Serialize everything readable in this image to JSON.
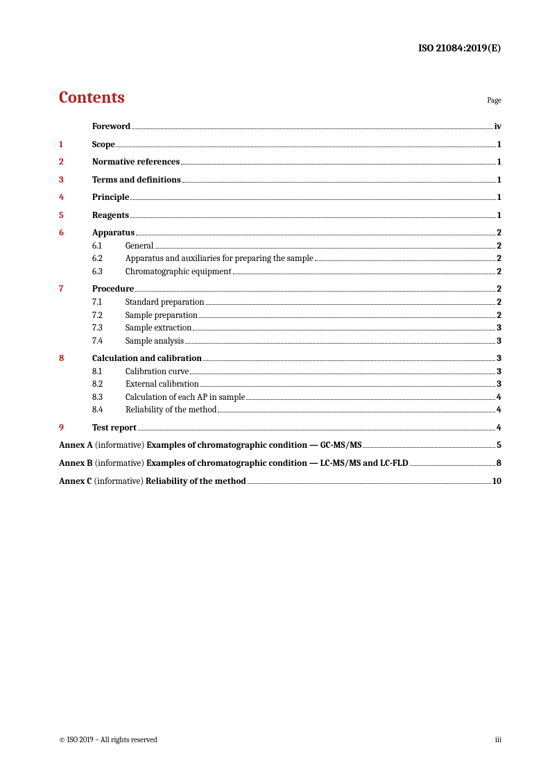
{
  "header": {
    "docId": "ISO 21084:2019(E)"
  },
  "contents": {
    "title": "Contents",
    "pageLabel": "Page"
  },
  "colors": {
    "accent": "#b22222",
    "text": "#000000",
    "background": "#ffffff"
  },
  "typography": {
    "bodyFontSize": 13,
    "titleFontSize": 24,
    "headerFontSize": 15,
    "footerFontSize": 11
  },
  "toc": [
    {
      "type": "top",
      "title": "Foreword",
      "page": "iv",
      "spaced": true
    },
    {
      "type": "top",
      "num": "1",
      "title": "Scope",
      "page": "1",
      "spaced": true
    },
    {
      "type": "top",
      "num": "2",
      "title": "Normative references",
      "page": "1",
      "spaced": true
    },
    {
      "type": "top",
      "num": "3",
      "title": "Terms and definitions",
      "page": "1",
      "spaced": true
    },
    {
      "type": "top",
      "num": "4",
      "title": "Principle",
      "page": "1",
      "spaced": true
    },
    {
      "type": "top",
      "num": "5",
      "title": "Reagents",
      "page": "1",
      "spaced": true
    },
    {
      "type": "top",
      "num": "6",
      "title": "Apparatus",
      "page": "2",
      "spaced": true
    },
    {
      "type": "sub",
      "num": "6.1",
      "title": "General",
      "page": "2"
    },
    {
      "type": "sub",
      "num": "6.2",
      "title": "Apparatus and auxiliaries for preparing the sample",
      "page": "2"
    },
    {
      "type": "sub",
      "num": "6.3",
      "title": "Chromatographic equipment",
      "page": "2"
    },
    {
      "type": "top",
      "num": "7",
      "title": "Procedure",
      "page": "2",
      "spaced": true
    },
    {
      "type": "sub",
      "num": "7.1",
      "title": "Standard preparation",
      "page": "2"
    },
    {
      "type": "sub",
      "num": "7.2",
      "title": "Sample preparation",
      "page": "2"
    },
    {
      "type": "sub",
      "num": "7.3",
      "title": "Sample extraction",
      "page": "3"
    },
    {
      "type": "sub",
      "num": "7.4",
      "title": "Sample analysis",
      "page": "3"
    },
    {
      "type": "top",
      "num": "8",
      "title": "Calculation and calibration",
      "page": "3",
      "spaced": true
    },
    {
      "type": "sub",
      "num": "8.1",
      "title": "Calibration curve",
      "page": "3"
    },
    {
      "type": "sub",
      "num": "8.2",
      "title": "External calibration",
      "page": "3"
    },
    {
      "type": "sub",
      "num": "8.3",
      "title": "Calculation of each AP in sample",
      "page": "4"
    },
    {
      "type": "sub",
      "num": "8.4",
      "title": "Reliability of the method",
      "page": "4"
    },
    {
      "type": "top",
      "num": "9",
      "title": "Test report",
      "page": "4",
      "spaced": true
    },
    {
      "type": "annex",
      "prefix": "Annex A",
      "info": "(informative)",
      "title": "Examples of chromatographic condition — GC-MS/MS",
      "page": "5",
      "spaced": true
    },
    {
      "type": "annex",
      "prefix": "Annex B",
      "info": "(informative)",
      "title": "Examples of chromatographic condition — LC-MS/MS and LC-FLD",
      "page": "8",
      "spaced": true
    },
    {
      "type": "annex",
      "prefix": "Annex C",
      "info": "(informative)",
      "title": "Reliability of the method",
      "page": "10",
      "spaced": true
    }
  ],
  "footer": {
    "copyright": "© ISO 2019 – All rights reserved",
    "pageNum": "iii"
  }
}
